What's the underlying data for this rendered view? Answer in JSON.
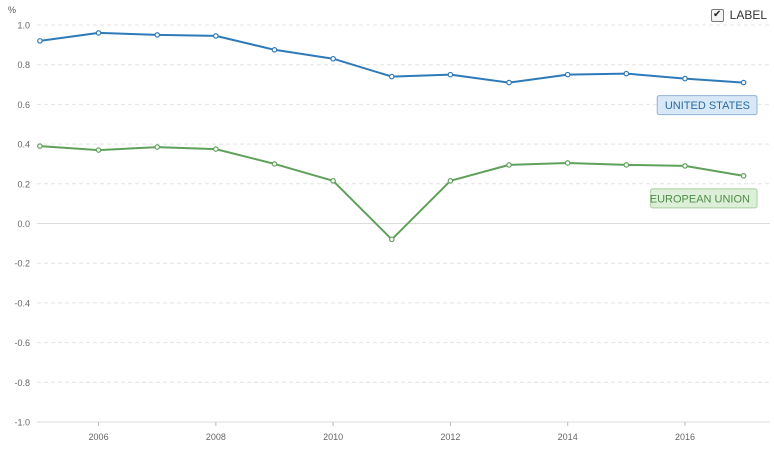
{
  "label_toggle": {
    "text": "LABEL",
    "checked": true,
    "check_glyph": "✔"
  },
  "chart_data": {
    "type": "line",
    "y_unit": "%",
    "xlabel": "",
    "ylabel": "",
    "xlim": [
      2005,
      2017.5
    ],
    "ylim": [
      -1.0,
      1.0
    ],
    "x_ticks": [
      2006,
      2008,
      2010,
      2012,
      2014,
      2016
    ],
    "y_ticks": [
      1.0,
      0.8,
      0.6,
      0.4,
      0.2,
      0.0,
      -0.2,
      -0.4,
      -0.6,
      -0.8,
      -1.0
    ],
    "y_tick_labels": [
      "1.0",
      "0.8",
      "0.6",
      "0.4",
      "0.2",
      "0.0",
      "-0.2",
      "-0.4",
      "-0.6",
      "-0.8",
      "-1.0"
    ],
    "grid": true,
    "x": [
      2005,
      2006,
      2007,
      2008,
      2009,
      2010,
      2011,
      2012,
      2013,
      2014,
      2015,
      2016,
      2017
    ],
    "series": [
      {
        "name": "UNITED STATES",
        "color": "#2e7ab8",
        "label_bg": "#d8e8f6",
        "label_border": "#8fb4d8",
        "values": [
          0.92,
          0.96,
          0.95,
          0.945,
          0.875,
          0.83,
          0.74,
          0.75,
          0.71,
          0.75,
          0.755,
          0.73,
          0.71
        ]
      },
      {
        "name": "EUROPEAN UNION",
        "color": "#5fa15a",
        "label_bg": "#ddefd8",
        "label_border": "#a8cf9f",
        "values": [
          0.39,
          0.37,
          0.385,
          0.375,
          0.3,
          0.215,
          -0.08,
          0.215,
          0.295,
          0.305,
          0.295,
          0.29,
          0.24
        ]
      }
    ]
  }
}
